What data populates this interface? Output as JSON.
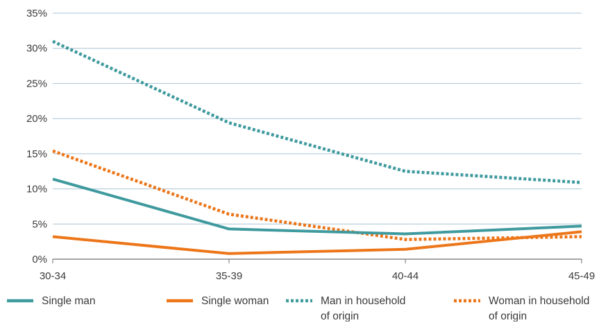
{
  "chart_data": {
    "type": "line",
    "title": "",
    "xlabel": "",
    "ylabel": "",
    "categories": [
      "30-34",
      "35-39",
      "40-44",
      "45-49"
    ],
    "y_tick_labels": [
      "0%",
      "5%",
      "10%",
      "15%",
      "20%",
      "25%",
      "30%",
      "35%"
    ],
    "y_ticks": [
      0,
      5,
      10,
      15,
      20,
      25,
      30,
      35
    ],
    "ylim": [
      0,
      35
    ],
    "grid": "horizontal",
    "legend_position": "bottom",
    "series": [
      {
        "name": "Single man",
        "legend_lines": [
          "Single man"
        ],
        "color": "#3f9a9e",
        "style": "solid",
        "values": [
          11.4,
          4.3,
          3.6,
          4.7
        ]
      },
      {
        "name": "Single woman",
        "legend_lines": [
          "Single woman"
        ],
        "color": "#ec7619",
        "style": "solid",
        "values": [
          3.2,
          0.8,
          1.4,
          3.9
        ]
      },
      {
        "name": "Man in household of origin",
        "legend_lines": [
          "Man in household",
          "of origin"
        ],
        "color": "#3f9a9e",
        "style": "dotted",
        "values": [
          31.0,
          19.4,
          12.5,
          10.9
        ]
      },
      {
        "name": "Woman in household of origin",
        "legend_lines": [
          "Woman in household",
          "of origin"
        ],
        "color": "#ec7619",
        "style": "dotted",
        "values": [
          15.4,
          6.4,
          2.8,
          3.2
        ]
      }
    ]
  }
}
